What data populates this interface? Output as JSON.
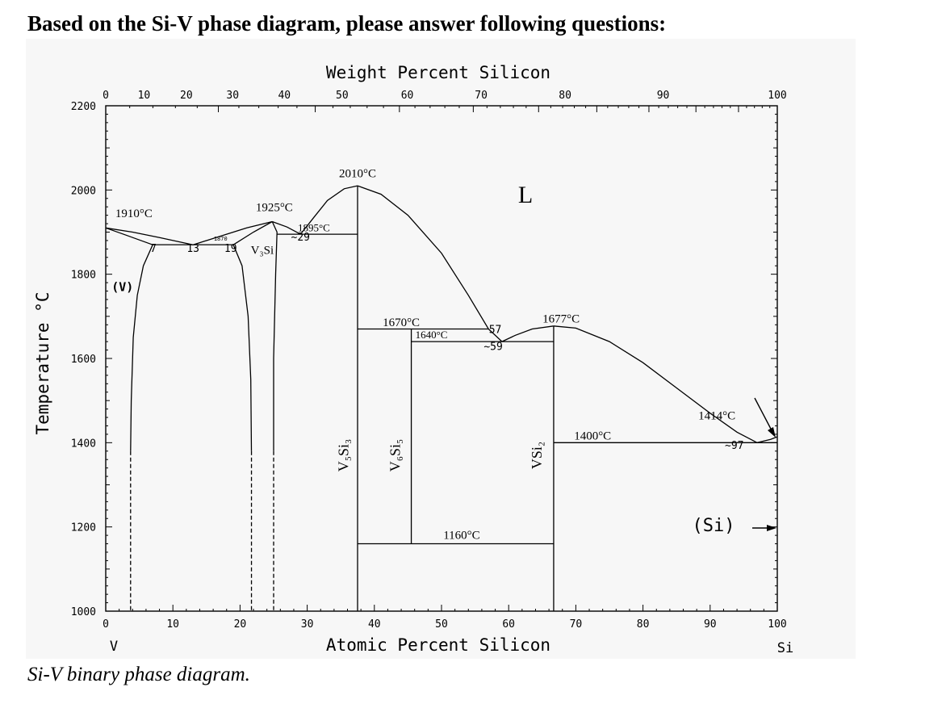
{
  "heading": "Based on the Si-V phase diagram, please answer following questions:",
  "caption": "Si-V binary phase diagram.",
  "colors": {
    "line": "#000000",
    "panel": "#f7f7f7",
    "background": "#ffffff"
  },
  "diagram": {
    "top_axis_title": "Weight Percent Silicon",
    "bottom_axis_title": "Atomic Percent Silicon",
    "y_axis_title": "Temperature °C",
    "left_element": "V",
    "right_element": "Si",
    "y_ticks": [
      "2200",
      "2000",
      "1800",
      "1600",
      "1400",
      "1200",
      "1000"
    ],
    "y_values": [
      2200,
      2000,
      1800,
      1600,
      1400,
      1200,
      1000
    ],
    "atomic_ticks": [
      "0",
      "10",
      "20",
      "30",
      "40",
      "50",
      "60",
      "70",
      "80",
      "90",
      "100"
    ],
    "atomic_values": [
      0,
      10,
      20,
      30,
      40,
      50,
      60,
      70,
      80,
      90,
      100
    ],
    "weight_ticks": [
      "0",
      "10",
      "20",
      "30",
      "40",
      "50",
      "60",
      "70",
      "80",
      "90",
      "100"
    ],
    "weight_at_positions": [
      0,
      5.7,
      12.0,
      18.9,
      26.6,
      35.2,
      44.9,
      55.9,
      68.4,
      83.0,
      100
    ],
    "xlim": [
      0,
      100
    ],
    "ylim": [
      1000,
      2200
    ],
    "phase_labels": [
      {
        "text": "L",
        "at": 62.5,
        "temp": 1970
      },
      {
        "text": "(V)",
        "at": 2.5,
        "temp": 1760
      },
      {
        "text": "V₃Si",
        "at": 23.3,
        "temp": 1848
      },
      {
        "text": "(Si)",
        "at": 90.5,
        "temp": 1190
      }
    ],
    "vertical_phase_labels": [
      {
        "text": "V₅Si₃",
        "at": 36.1,
        "temp": 1370
      },
      {
        "text": "V₆Si₅",
        "at": 43.8,
        "temp": 1370
      },
      {
        "text": "VSi₂",
        "at": 64.9,
        "temp": 1370
      }
    ],
    "temperature_labels": [
      {
        "text": "2010°C",
        "at": 37.5,
        "temp": 2030
      },
      {
        "text": "1910°C",
        "at": 4.2,
        "temp": 1935
      },
      {
        "text": "1925°C",
        "at": 25.1,
        "temp": 1950
      },
      {
        "text": "1895°C",
        "at": 31.0,
        "temp": 1902
      },
      {
        "text": "1670°C",
        "at": 44.0,
        "temp": 1677
      },
      {
        "text": "1640°C",
        "at": 48.5,
        "temp": 1648
      },
      {
        "text": "1677°C",
        "at": 67.8,
        "temp": 1685
      },
      {
        "text": "1414°C",
        "at": 91.0,
        "temp": 1455
      },
      {
        "text": "1400°C",
        "at": 72.5,
        "temp": 1407
      },
      {
        "text": "1160°C",
        "at": 53.0,
        "temp": 1172
      }
    ],
    "composition_labels": [
      {
        "text": "7",
        "at": 7.1,
        "temp": 1853
      },
      {
        "text": "13",
        "at": 13.0,
        "temp": 1853
      },
      {
        "text": "19",
        "at": 18.6,
        "temp": 1853
      },
      {
        "text": "1870",
        "at": 17.1,
        "temp": 1880
      },
      {
        "text": "~29",
        "at": 29.0,
        "temp": 1880
      },
      {
        "text": "57",
        "at": 58.0,
        "temp": 1660
      },
      {
        "text": "~59",
        "at": 57.7,
        "temp": 1620
      },
      {
        "text": "~97",
        "at": 93.6,
        "temp": 1385
      }
    ]
  }
}
